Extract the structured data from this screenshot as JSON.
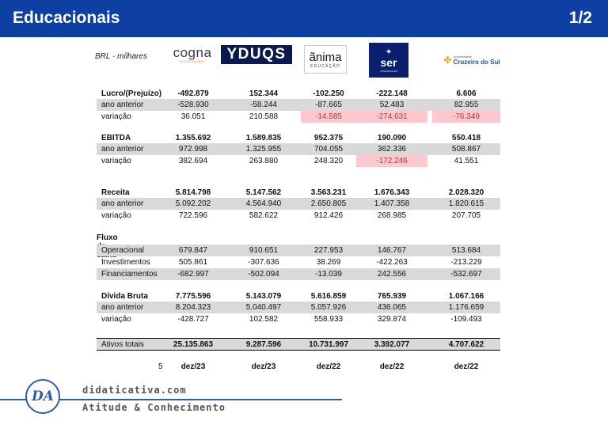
{
  "header": {
    "title": "Educacionais",
    "page": "1/2",
    "bg_color": "#0e3fa2"
  },
  "unit_label": "BRL - milhares",
  "logos": {
    "cogna": {
      "main": "cogna",
      "sub": "EDUCAÇÃO"
    },
    "yduqs": {
      "main": "YDUQS"
    },
    "anima": {
      "main": "ãnima",
      "sub": "EDUCAÇÃO"
    },
    "ser": {
      "main": "ser",
      "sub": "educacional"
    },
    "cruzeiro": {
      "top": "Universidade",
      "main": "Cruzeiro do Sul"
    }
  },
  "sections": {
    "lucro": {
      "label": "Lucro/(Prejuízo)",
      "values": [
        "-492.879",
        "152.344",
        "-102.250",
        "-222.148",
        "6.606"
      ],
      "prev_label": "ano anterior",
      "prev": [
        "-528.930",
        "-58.244",
        "-87.665",
        "52.483",
        "82.955"
      ],
      "var_label": "variação",
      "var": [
        "36.051",
        "210.588",
        "-14.585",
        "-274.631",
        "-76.349"
      ]
    },
    "ebitda": {
      "label": "EBITDA",
      "values": [
        "1.355.692",
        "1.589.835",
        "952.375",
        "190.090",
        "550.418"
      ],
      "prev_label": "ano anterior",
      "prev": [
        "972.998",
        "1.325.955",
        "704.055",
        "362.336",
        "508.867"
      ],
      "var_label": "variação",
      "var": [
        "382.694",
        "263.880",
        "248.320",
        "-172.246",
        "41.551"
      ]
    },
    "receita": {
      "label": "Receita",
      "values": [
        "5.814.798",
        "5.147.562",
        "3.563.231",
        "1.676.343",
        "2.028.320"
      ],
      "prev_label": "ano anterior",
      "prev": [
        "5.092.202",
        "4.564.940",
        "2.650.805",
        "1.407.358",
        "1.820.615"
      ],
      "var_label": "variação",
      "var": [
        "722.596",
        "582.622",
        "912.426",
        "268.985",
        "207.705"
      ]
    },
    "fluxo": {
      "title": "Fluxo de caixa",
      "op_label": "Operacional",
      "op": [
        "679.847",
        "910.651",
        "227.953",
        "146.767",
        "513.684"
      ],
      "inv_label": "Investimentos",
      "inv": [
        "505.861",
        "-307.636",
        "38.269",
        "-422.263",
        "-213.229"
      ],
      "fin_label": "Financiamentos",
      "fin": [
        "-682.997",
        "-502.094",
        "-13.039",
        "242.556",
        "-532.697"
      ]
    },
    "divida": {
      "label": "Dívida Bruta",
      "values": [
        "7.775.596",
        "5.143.079",
        "5.616.859",
        "765.939",
        "1.067.166"
      ],
      "prev_label": "ano anterior",
      "prev": [
        "8.204.323",
        "5.040.497",
        "5.057.926",
        "436.065",
        "1.176.659"
      ],
      "var_label": "variação",
      "var": [
        "-428.727",
        "102.582",
        "558.933",
        "329.874",
        "-109.493"
      ]
    },
    "ativos": {
      "label": "Ativos totais",
      "values": [
        "25.135.863",
        "9.287.596",
        "10.731.997",
        "3.392.077",
        "4.707.622"
      ]
    }
  },
  "footer": {
    "number": "5",
    "periods": [
      "dez/23",
      "dez/23",
      "dez/22",
      "dez/22",
      "dez/22"
    ]
  },
  "brand": {
    "initials": "DA",
    "site": "didaticativa.com",
    "motto": "Atitude & Conhecimento",
    "color": "#2b5ea7"
  }
}
